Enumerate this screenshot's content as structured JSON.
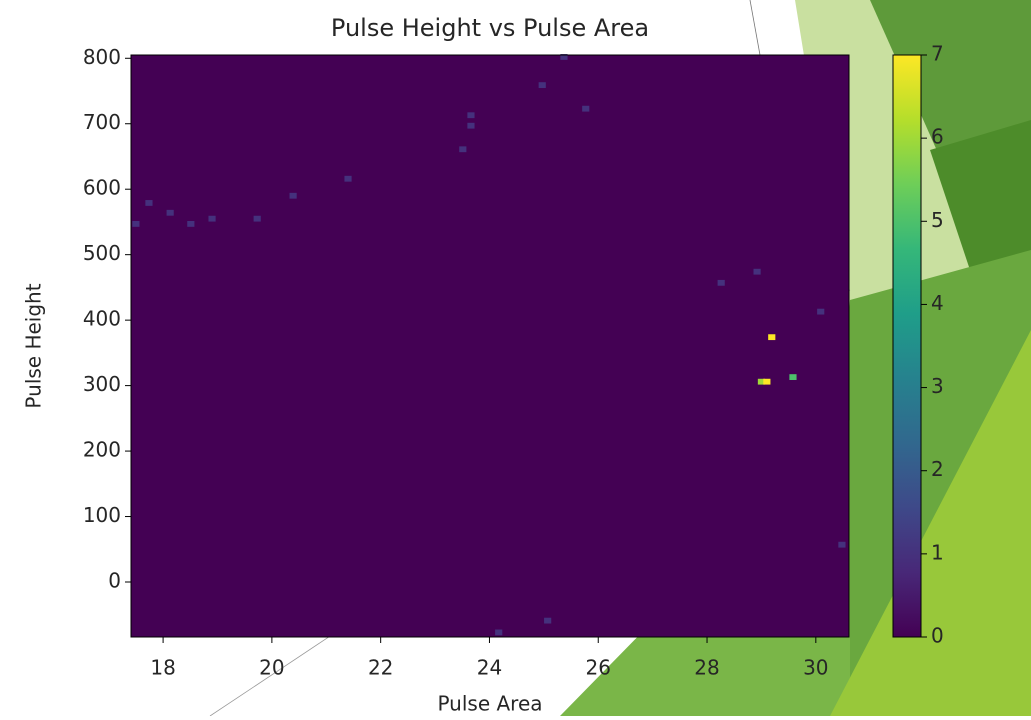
{
  "chart_data": {
    "type": "hist2d",
    "title": "Pulse Height vs Pulse Area",
    "x_label": "Pulse Area",
    "y_label": "Pulse Height",
    "xlim": [
      17.41,
      30.61
    ],
    "ylim": [
      -84,
      805
    ],
    "bins": [
      100,
      100
    ],
    "xticks": [
      18,
      20,
      22,
      24,
      26,
      28,
      30
    ],
    "yticks": [
      0,
      100,
      200,
      300,
      400,
      500,
      600,
      700,
      800
    ],
    "colormap": "viridis",
    "clim": [
      0,
      7
    ],
    "cticks": [
      0,
      1,
      2,
      3,
      4,
      5,
      6,
      7
    ],
    "cells": {
      "x": [
        17.5,
        17.74,
        18.13,
        18.51,
        18.9,
        19.73,
        20.39,
        21.4,
        23.51,
        23.66,
        23.66,
        24.97,
        25.37,
        25.77,
        24.17,
        25.07,
        28.26,
        28.92,
        30.09,
        30.48,
        29.19,
        29.0,
        29.1,
        29.58
      ],
      "y": [
        547,
        579,
        564,
        547,
        555,
        555,
        590,
        616,
        661,
        713,
        697,
        759,
        802,
        723,
        -77,
        -59,
        457,
        474,
        413,
        57,
        374,
        306,
        306,
        313
      ],
      "values": [
        1,
        1,
        1,
        1,
        1,
        1,
        1,
        1,
        1,
        1,
        1,
        1,
        1,
        1,
        1,
        1,
        1,
        1,
        1,
        1,
        7,
        6,
        7,
        5
      ]
    }
  }
}
